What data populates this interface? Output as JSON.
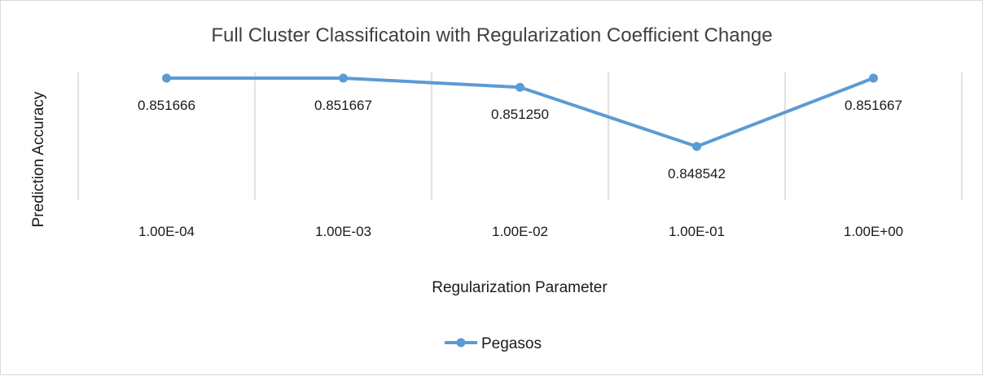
{
  "chart_data": {
    "type": "line",
    "title": "Full Cluster Classificatoin with Regularization Coefficient Change",
    "xlabel": "Regularization Parameter",
    "ylabel": "Prediction Accuracy",
    "categories": [
      "1.00E-04",
      "1.00E-03",
      "1.00E-02",
      "1.00E-01",
      "1.00E+00"
    ],
    "series": [
      {
        "name": "Pegasos",
        "values": [
          0.851666,
          0.851667,
          0.85125,
          0.848542,
          0.851667
        ],
        "labels": [
          "0.851666",
          "0.851667",
          "0.851250",
          "0.848542",
          "0.851667"
        ],
        "color": "#5b9bd5"
      }
    ],
    "grid": "vertical",
    "legend": "bottom"
  }
}
